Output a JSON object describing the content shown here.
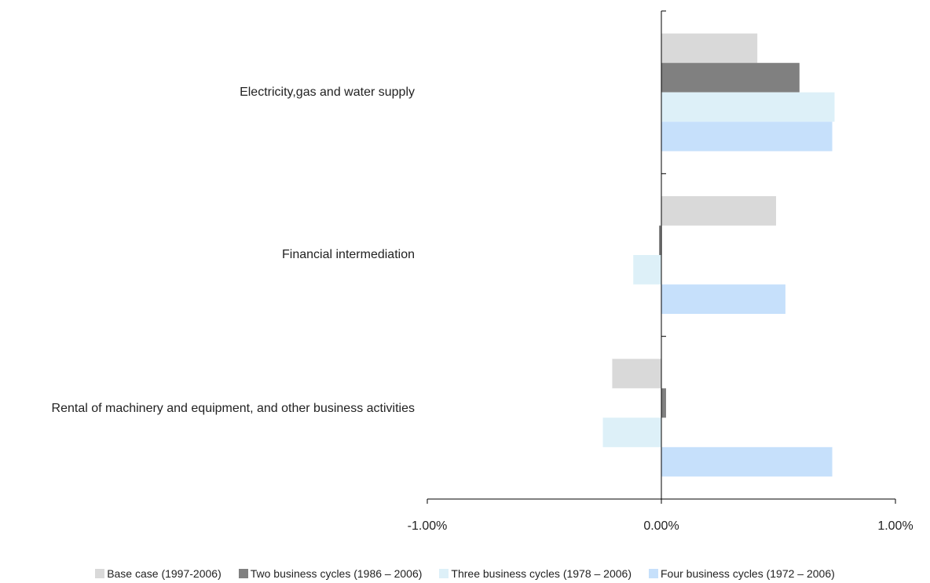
{
  "chart_data": {
    "type": "hbar",
    "categories": [
      "Electricity,gas and water supply",
      "Financial intermediation",
      "Rental of machinery and equipment, and other business activities"
    ],
    "series": [
      {
        "name": "Base case (1997-2006)",
        "color": "#d9d9d9",
        "values": [
          0.41,
          0.49,
          -0.21
        ]
      },
      {
        "name": "Two business cycles (1986 – 2006)",
        "color": "#808080",
        "values": [
          0.59,
          -0.01,
          0.02
        ]
      },
      {
        "name": "Three business cycles (1978 – 2006)",
        "color": "#ddf0f8",
        "values": [
          0.74,
          -0.12,
          -0.25
        ]
      },
      {
        "name": "Four business cycles (1972 – 2006)",
        "color": "#c6e0fb",
        "values": [
          0.73,
          0.53,
          0.73
        ]
      }
    ],
    "xlim": [
      -1,
      1
    ],
    "xticks": [
      {
        "value": -1,
        "label": "-1.00%"
      },
      {
        "value": 0,
        "label": "0.00%"
      },
      {
        "value": 1,
        "label": "1.00%"
      }
    ],
    "legend": "bottom"
  }
}
